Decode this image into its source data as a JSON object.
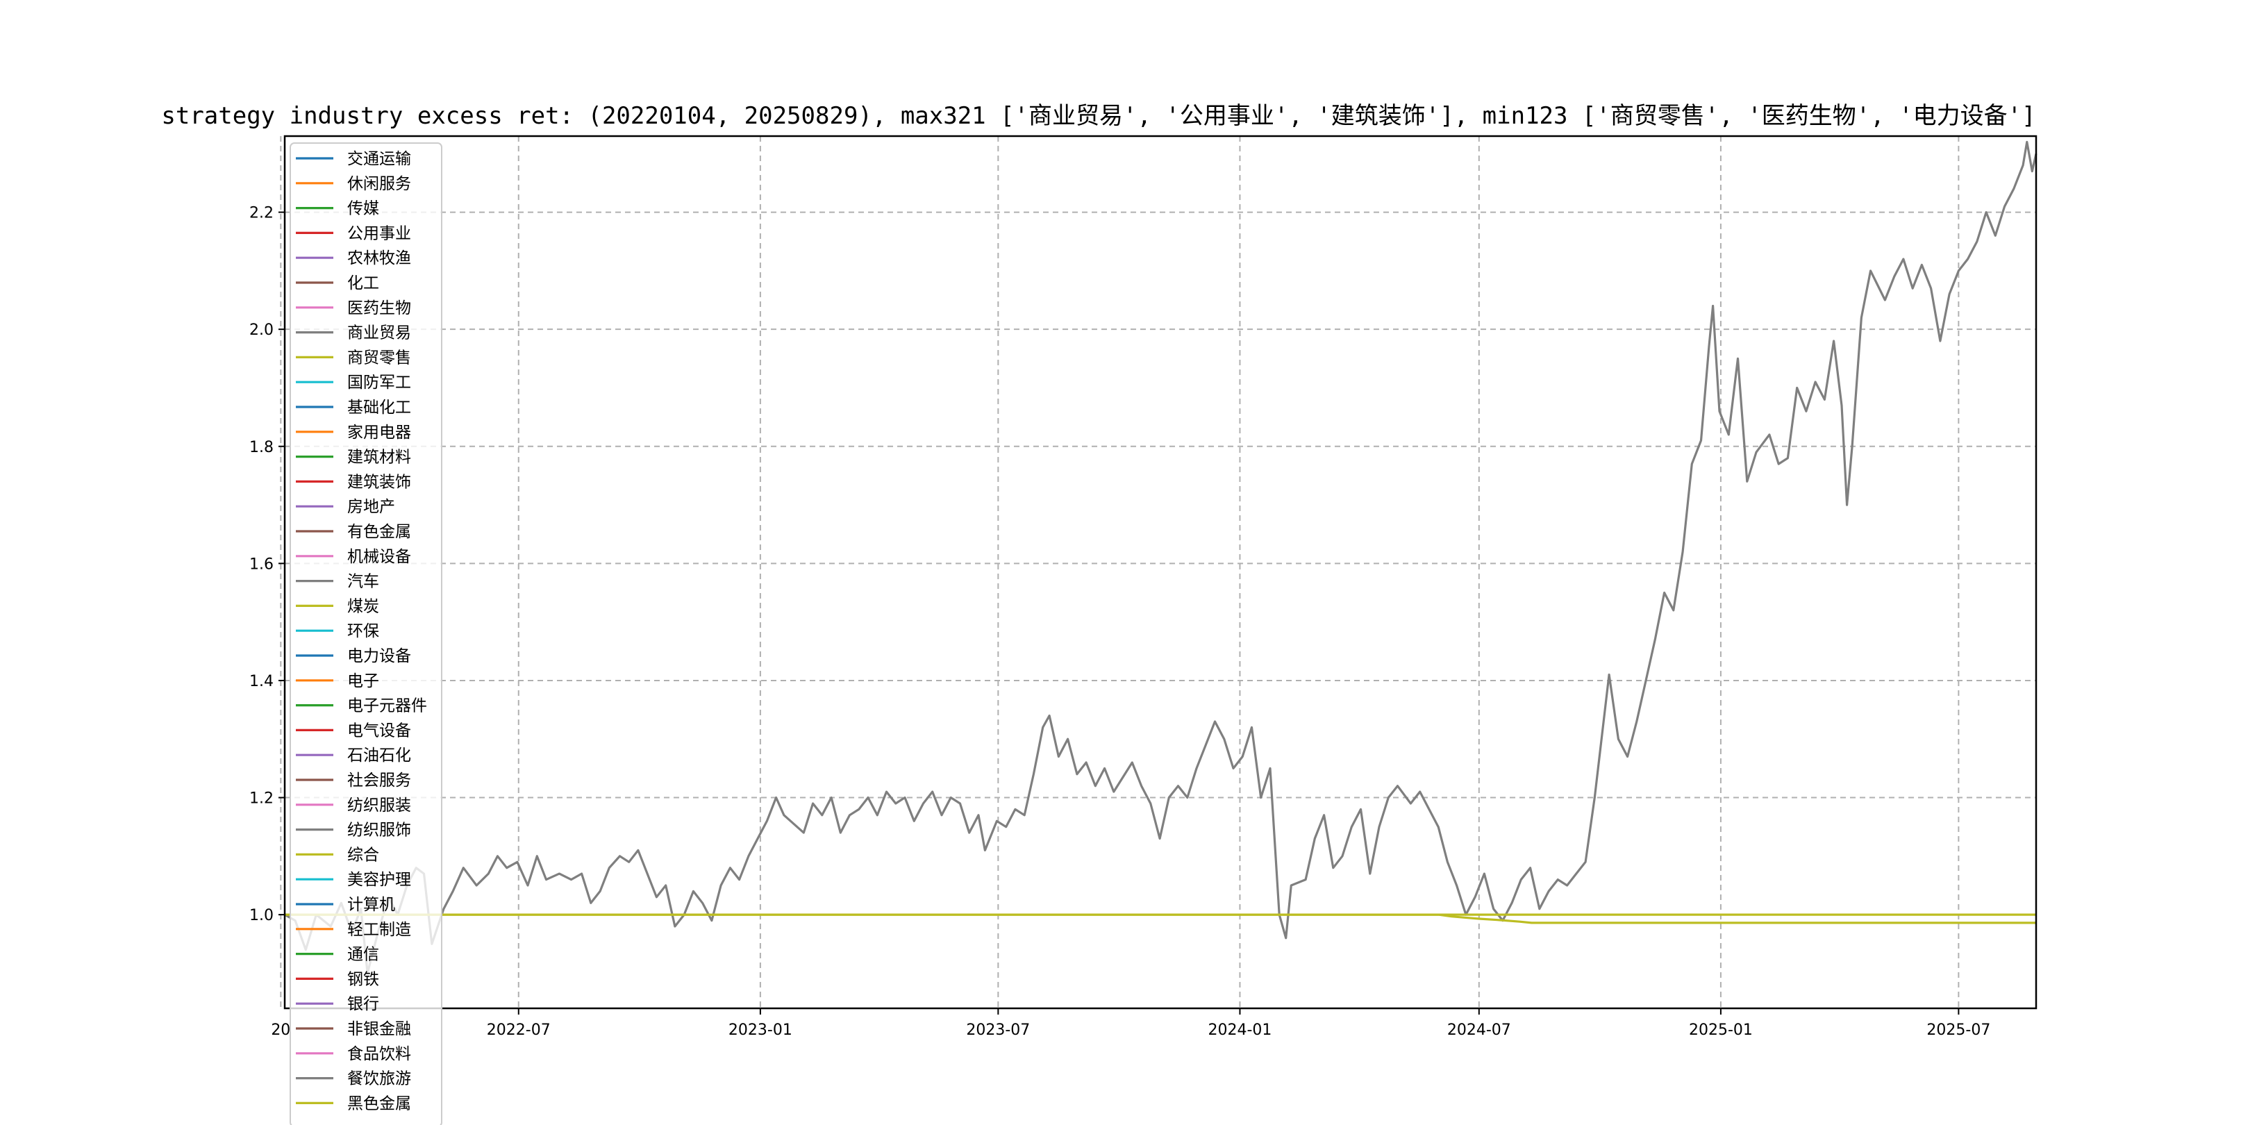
{
  "chart_data": {
    "type": "line",
    "title": "strategy industry excess ret: (20220104, 20250829), max321 ['商业贸易', '公用事业', '建筑装饰'], min123 ['商贸零售', '医药生物', '电力设备']",
    "xlabel": "",
    "ylabel": "",
    "x_range": [
      "2022-01-04",
      "2025-08-29"
    ],
    "ylim": [
      0.84,
      2.33
    ],
    "x_ticks": [
      "2022-07",
      "2023-01",
      "2023-07",
      "2024-01",
      "2024-07",
      "2025-01",
      "2025-07"
    ],
    "x_tick_partial": "20",
    "y_ticks": [
      1.0,
      1.2,
      1.4,
      1.6,
      1.8,
      2.0,
      2.2
    ],
    "grid": true,
    "legend_placement": "upper-left",
    "legend": [
      {
        "label": "交通运输",
        "color": "#1f77b4"
      },
      {
        "label": "休闲服务",
        "color": "#ff7f0e"
      },
      {
        "label": "传媒",
        "color": "#2ca02c"
      },
      {
        "label": "公用事业",
        "color": "#d62728"
      },
      {
        "label": "农林牧渔",
        "color": "#9467bd"
      },
      {
        "label": "化工",
        "color": "#8c564b"
      },
      {
        "label": "医药生物",
        "color": "#e377c2"
      },
      {
        "label": "商业贸易",
        "color": "#7f7f7f"
      },
      {
        "label": "商贸零售",
        "color": "#bcbd22"
      },
      {
        "label": "国防军工",
        "color": "#17becf"
      },
      {
        "label": "基础化工",
        "color": "#1f77b4"
      },
      {
        "label": "家用电器",
        "color": "#ff7f0e"
      },
      {
        "label": "建筑材料",
        "color": "#2ca02c"
      },
      {
        "label": "建筑装饰",
        "color": "#d62728"
      },
      {
        "label": "房地产",
        "color": "#9467bd"
      },
      {
        "label": "有色金属",
        "color": "#8c564b"
      },
      {
        "label": "机械设备",
        "color": "#e377c2"
      },
      {
        "label": "汽车",
        "color": "#7f7f7f"
      },
      {
        "label": "煤炭",
        "color": "#bcbd22"
      },
      {
        "label": "环保",
        "color": "#17becf"
      },
      {
        "label": "电力设备",
        "color": "#1f77b4"
      },
      {
        "label": "电子",
        "color": "#ff7f0e"
      },
      {
        "label": "电子元器件",
        "color": "#2ca02c"
      },
      {
        "label": "电气设备",
        "color": "#d62728"
      },
      {
        "label": "石油石化",
        "color": "#9467bd"
      },
      {
        "label": "社会服务",
        "color": "#8c564b"
      },
      {
        "label": "纺织服装",
        "color": "#e377c2"
      },
      {
        "label": "纺织服饰",
        "color": "#7f7f7f"
      },
      {
        "label": "综合",
        "color": "#bcbd22"
      },
      {
        "label": "美容护理",
        "color": "#17becf"
      },
      {
        "label": "计算机",
        "color": "#1f77b4"
      },
      {
        "label": "轻工制造",
        "color": "#ff7f0e"
      },
      {
        "label": "通信",
        "color": "#2ca02c"
      },
      {
        "label": "钢铁",
        "color": "#d62728"
      },
      {
        "label": "银行",
        "color": "#9467bd"
      },
      {
        "label": "非银金融",
        "color": "#8c564b"
      },
      {
        "label": "食品饮料",
        "color": "#e377c2"
      },
      {
        "label": "餐饮旅游",
        "color": "#7f7f7f"
      },
      {
        "label": "黑色金属",
        "color": "#bcbd22"
      }
    ],
    "series": [
      {
        "color": "#7f7f7f",
        "points": [
          [
            "2022-01-04",
            1.0
          ],
          [
            "2022-01-12",
            0.99
          ],
          [
            "2022-01-20",
            0.94
          ],
          [
            "2022-01-28",
            1.0
          ],
          [
            "2022-02-08",
            0.98
          ],
          [
            "2022-02-16",
            1.02
          ],
          [
            "2022-02-24",
            0.97
          ],
          [
            "2022-03-03",
            1.01
          ],
          [
            "2022-03-08",
            0.9
          ],
          [
            "2022-03-16",
            0.97
          ],
          [
            "2022-03-24",
            1.03
          ],
          [
            "2022-03-31",
            1.0
          ],
          [
            "2022-04-07",
            1.05
          ],
          [
            "2022-04-14",
            1.08
          ],
          [
            "2022-04-20",
            1.07
          ],
          [
            "2022-04-26",
            0.95
          ],
          [
            "2022-05-05",
            1.01
          ],
          [
            "2022-05-12",
            1.04
          ],
          [
            "2022-05-20",
            1.08
          ],
          [
            "2022-05-30",
            1.05
          ],
          [
            "2022-06-08",
            1.07
          ],
          [
            "2022-06-15",
            1.1
          ],
          [
            "2022-06-22",
            1.08
          ],
          [
            "2022-06-30",
            1.09
          ],
          [
            "2022-07-08",
            1.05
          ],
          [
            "2022-07-15",
            1.1
          ],
          [
            "2022-07-22",
            1.06
          ],
          [
            "2022-08-01",
            1.07
          ],
          [
            "2022-08-10",
            1.06
          ],
          [
            "2022-08-18",
            1.07
          ],
          [
            "2022-08-25",
            1.02
          ],
          [
            "2022-09-01",
            1.04
          ],
          [
            "2022-09-08",
            1.08
          ],
          [
            "2022-09-16",
            1.1
          ],
          [
            "2022-09-23",
            1.09
          ],
          [
            "2022-09-30",
            1.11
          ],
          [
            "2022-10-14",
            1.03
          ],
          [
            "2022-10-21",
            1.05
          ],
          [
            "2022-10-28",
            0.98
          ],
          [
            "2022-11-04",
            1.0
          ],
          [
            "2022-11-11",
            1.04
          ],
          [
            "2022-11-18",
            1.02
          ],
          [
            "2022-11-25",
            0.99
          ],
          [
            "2022-12-02",
            1.05
          ],
          [
            "2022-12-09",
            1.08
          ],
          [
            "2022-12-16",
            1.06
          ],
          [
            "2022-12-23",
            1.1
          ],
          [
            "2022-12-30",
            1.13
          ],
          [
            "2023-01-06",
            1.16
          ],
          [
            "2023-01-13",
            1.2
          ],
          [
            "2023-01-19",
            1.17
          ],
          [
            "2023-02-03",
            1.14
          ],
          [
            "2023-02-10",
            1.19
          ],
          [
            "2023-02-17",
            1.17
          ],
          [
            "2023-02-24",
            1.2
          ],
          [
            "2023-03-03",
            1.14
          ],
          [
            "2023-03-10",
            1.17
          ],
          [
            "2023-03-17",
            1.18
          ],
          [
            "2023-03-24",
            1.2
          ],
          [
            "2023-03-31",
            1.17
          ],
          [
            "2023-04-07",
            1.21
          ],
          [
            "2023-04-14",
            1.19
          ],
          [
            "2023-04-21",
            1.2
          ],
          [
            "2023-04-28",
            1.16
          ],
          [
            "2023-05-05",
            1.19
          ],
          [
            "2023-05-12",
            1.21
          ],
          [
            "2023-05-19",
            1.17
          ],
          [
            "2023-05-26",
            1.2
          ],
          [
            "2023-06-02",
            1.19
          ],
          [
            "2023-06-09",
            1.14
          ],
          [
            "2023-06-16",
            1.17
          ],
          [
            "2023-06-21",
            1.11
          ],
          [
            "2023-06-30",
            1.16
          ],
          [
            "2023-07-07",
            1.15
          ],
          [
            "2023-07-14",
            1.18
          ],
          [
            "2023-07-21",
            1.17
          ],
          [
            "2023-07-28",
            1.24
          ],
          [
            "2023-08-04",
            1.32
          ],
          [
            "2023-08-09",
            1.34
          ],
          [
            "2023-08-16",
            1.27
          ],
          [
            "2023-08-23",
            1.3
          ],
          [
            "2023-08-30",
            1.24
          ],
          [
            "2023-09-06",
            1.26
          ],
          [
            "2023-09-13",
            1.22
          ],
          [
            "2023-09-20",
            1.25
          ],
          [
            "2023-09-27",
            1.21
          ],
          [
            "2023-10-11",
            1.26
          ],
          [
            "2023-10-18",
            1.22
          ],
          [
            "2023-10-25",
            1.19
          ],
          [
            "2023-11-01",
            1.13
          ],
          [
            "2023-11-08",
            1.2
          ],
          [
            "2023-11-15",
            1.22
          ],
          [
            "2023-11-22",
            1.2
          ],
          [
            "2023-11-29",
            1.25
          ],
          [
            "2023-12-06",
            1.29
          ],
          [
            "2023-12-13",
            1.33
          ],
          [
            "2023-12-20",
            1.3
          ],
          [
            "2023-12-27",
            1.25
          ],
          [
            "2024-01-03",
            1.27
          ],
          [
            "2024-01-10",
            1.32
          ],
          [
            "2024-01-17",
            1.2
          ],
          [
            "2024-01-24",
            1.25
          ],
          [
            "2024-01-31",
            1.0
          ],
          [
            "2024-02-05",
            0.96
          ],
          [
            "2024-02-09",
            1.05
          ],
          [
            "2024-02-20",
            1.06
          ],
          [
            "2024-02-27",
            1.13
          ],
          [
            "2024-03-05",
            1.17
          ],
          [
            "2024-03-12",
            1.08
          ],
          [
            "2024-03-19",
            1.1
          ],
          [
            "2024-03-26",
            1.15
          ],
          [
            "2024-04-02",
            1.18
          ],
          [
            "2024-04-09",
            1.07
          ],
          [
            "2024-04-16",
            1.15
          ],
          [
            "2024-04-23",
            1.2
          ],
          [
            "2024-04-30",
            1.22
          ],
          [
            "2024-05-10",
            1.19
          ],
          [
            "2024-05-17",
            1.21
          ],
          [
            "2024-05-24",
            1.18
          ],
          [
            "2024-05-31",
            1.15
          ],
          [
            "2024-06-07",
            1.09
          ],
          [
            "2024-06-14",
            1.05
          ],
          [
            "2024-06-21",
            1.0
          ],
          [
            "2024-06-28",
            1.03
          ],
          [
            "2024-07-05",
            1.07
          ],
          [
            "2024-07-12",
            1.01
          ],
          [
            "2024-07-19",
            0.99
          ],
          [
            "2024-07-26",
            1.02
          ],
          [
            "2024-08-02",
            1.06
          ],
          [
            "2024-08-09",
            1.08
          ],
          [
            "2024-08-16",
            1.01
          ],
          [
            "2024-08-23",
            1.04
          ],
          [
            "2024-08-30",
            1.06
          ],
          [
            "2024-09-06",
            1.05
          ],
          [
            "2024-09-13",
            1.07
          ],
          [
            "2024-09-20",
            1.09
          ],
          [
            "2024-09-27",
            1.2
          ],
          [
            "2024-10-08",
            1.41
          ],
          [
            "2024-10-15",
            1.3
          ],
          [
            "2024-10-22",
            1.27
          ],
          [
            "2024-10-29",
            1.33
          ],
          [
            "2024-11-05",
            1.4
          ],
          [
            "2024-11-12",
            1.47
          ],
          [
            "2024-11-19",
            1.55
          ],
          [
            "2024-11-26",
            1.52
          ],
          [
            "2024-12-03",
            1.62
          ],
          [
            "2024-12-10",
            1.77
          ],
          [
            "2024-12-17",
            1.81
          ],
          [
            "2024-12-23",
            1.97
          ],
          [
            "2024-12-26",
            2.04
          ],
          [
            "2024-12-31",
            1.86
          ],
          [
            "2025-01-07",
            1.82
          ],
          [
            "2025-01-14",
            1.95
          ],
          [
            "2025-01-21",
            1.74
          ],
          [
            "2025-01-28",
            1.79
          ],
          [
            "2025-02-07",
            1.82
          ],
          [
            "2025-02-14",
            1.77
          ],
          [
            "2025-02-21",
            1.78
          ],
          [
            "2025-02-28",
            1.9
          ],
          [
            "2025-03-07",
            1.86
          ],
          [
            "2025-03-14",
            1.91
          ],
          [
            "2025-03-21",
            1.88
          ],
          [
            "2025-03-28",
            1.98
          ],
          [
            "2025-04-03",
            1.87
          ],
          [
            "2025-04-07",
            1.7
          ],
          [
            "2025-04-11",
            1.8
          ],
          [
            "2025-04-18",
            2.02
          ],
          [
            "2025-04-25",
            2.1
          ],
          [
            "2025-05-06",
            2.05
          ],
          [
            "2025-05-13",
            2.09
          ],
          [
            "2025-05-20",
            2.12
          ],
          [
            "2025-05-27",
            2.07
          ],
          [
            "2025-06-03",
            2.11
          ],
          [
            "2025-06-10",
            2.07
          ],
          [
            "2025-06-17",
            1.98
          ],
          [
            "2025-06-24",
            2.06
          ],
          [
            "2025-07-01",
            2.1
          ],
          [
            "2025-07-08",
            2.12
          ],
          [
            "2025-07-15",
            2.15
          ],
          [
            "2025-07-22",
            2.2
          ],
          [
            "2025-07-29",
            2.16
          ],
          [
            "2025-08-05",
            2.21
          ],
          [
            "2025-08-12",
            2.24
          ],
          [
            "2025-08-19",
            2.28
          ],
          [
            "2025-08-22",
            2.32
          ],
          [
            "2025-08-26",
            2.27
          ],
          [
            "2025-08-29",
            2.3
          ]
        ]
      },
      {
        "color": "#bcbd22",
        "points": [
          [
            "2022-01-04",
            1.0
          ],
          [
            "2022-12-31",
            1.0
          ],
          [
            "2023-12-31",
            1.0
          ],
          [
            "2024-05-31",
            1.0
          ],
          [
            "2024-06-10",
            0.997
          ],
          [
            "2024-06-20",
            0.995
          ],
          [
            "2024-07-01",
            0.993
          ],
          [
            "2024-07-15",
            0.991
          ],
          [
            "2024-08-01",
            0.988
          ],
          [
            "2024-08-10",
            0.986
          ],
          [
            "2025-08-29",
            0.986
          ]
        ]
      },
      {
        "color": "#bcbd22",
        "points": [
          [
            "2022-01-04",
            1.0
          ],
          [
            "2025-08-29",
            1.0
          ]
        ]
      }
    ]
  }
}
